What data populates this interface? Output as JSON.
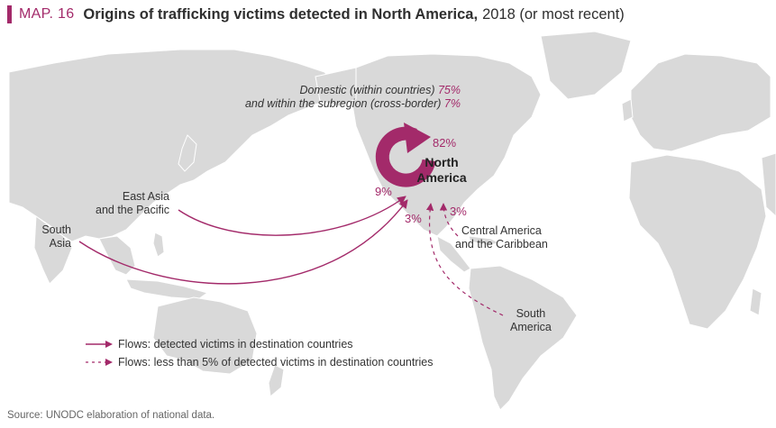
{
  "header": {
    "map_label": "MAP. 16",
    "title_strong": "Origins of trafficking victims detected in North America,",
    "title_rest": "2018 (or most recent)"
  },
  "colors": {
    "accent": "#a32a6a",
    "land": "#d9d9d9",
    "sea": "#ffffff"
  },
  "domestic_note": {
    "line1_text": "Domestic (within countries)",
    "line1_value": "75%",
    "line2_text": "and within the subregion (cross-border)",
    "line2_value": "7%"
  },
  "destination": {
    "name_line1": "North",
    "name_line2": "America",
    "value": "82%"
  },
  "origins": {
    "east_asia": {
      "line1": "East Asia",
      "line2": "and the Pacific"
    },
    "south_asia": {
      "line1": "South",
      "line2": "Asia"
    },
    "central_america": {
      "line1": "Central America",
      "line2": "and the Caribbean",
      "value": "3%"
    },
    "south_america": {
      "line1": "South",
      "line2": "America",
      "value": "3%"
    },
    "asia_combined_value": "9%"
  },
  "legend": {
    "solid": "Flows: detected victims in destination countries",
    "dashed": "Flows: less than 5% of detected victims in destination countries"
  },
  "source": "Source: UNODC elaboration of national data."
}
